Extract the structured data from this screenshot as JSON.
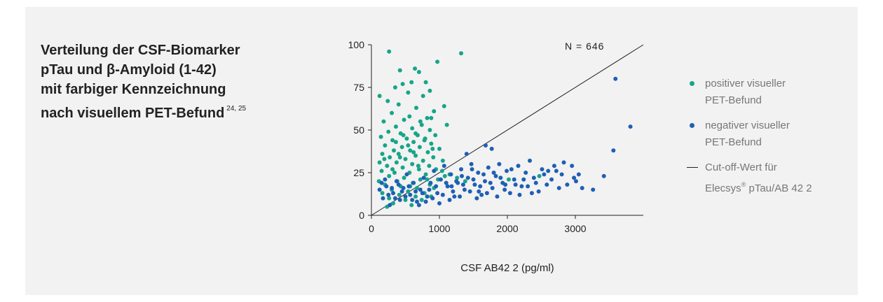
{
  "title": {
    "lines": [
      "Verteilung der CSF-Biomarker",
      "pTau und β-Amyloid (1-42)",
      "mit farbiger Kennzeichnung",
      "nach visuellem PET-Befund"
    ],
    "superscript": "24, 25"
  },
  "colors": {
    "positive": "#17a589",
    "negative": "#1f5fb4",
    "cutoff": "#222222"
  },
  "legend": {
    "positive": [
      "positiver visueller",
      "PET-Befund"
    ],
    "negative": [
      "negativer visueller",
      "PET-Befund"
    ],
    "cutoff_line1": "Cut-off-Wert für",
    "cutoff_line2_pre": "Elecsys",
    "cutoff_line2_sup": "®",
    "cutoff_line2_post": " pTau/AB 42 2"
  },
  "chart_data": {
    "type": "scatter",
    "annotation": "N = 646",
    "xlabel": "CSF AB42 2 (pg/ml)",
    "ylabel": "",
    "xlim": [
      0,
      4000
    ],
    "ylim": [
      0,
      100
    ],
    "xticks": [
      0,
      1000,
      2000,
      3000
    ],
    "yticks": [
      0,
      25,
      50,
      75,
      100
    ],
    "cutoff_line": {
      "x": [
        0,
        4000
      ],
      "y": [
        0,
        100
      ]
    },
    "series": [
      {
        "key": "positive",
        "points": [
          [
            260,
            96
          ],
          [
            1320,
            95
          ],
          [
            970,
            90
          ],
          [
            640,
            86
          ],
          [
            420,
            85
          ],
          [
            700,
            84
          ],
          [
            590,
            78
          ],
          [
            460,
            77
          ],
          [
            800,
            78
          ],
          [
            350,
            75
          ],
          [
            860,
            73
          ],
          [
            120,
            70
          ],
          [
            540,
            72
          ],
          [
            760,
            70
          ],
          [
            240,
            67
          ],
          [
            400,
            65
          ],
          [
            1070,
            64
          ],
          [
            660,
            63
          ],
          [
            920,
            61
          ],
          [
            300,
            60
          ],
          [
            560,
            58
          ],
          [
            820,
            57
          ],
          [
            180,
            55
          ],
          [
            480,
            56
          ],
          [
            720,
            55
          ],
          [
            1110,
            53
          ],
          [
            360,
            52
          ],
          [
            600,
            51
          ],
          [
            860,
            50
          ],
          [
            250,
            49
          ],
          [
            430,
            48
          ],
          [
            680,
            47
          ],
          [
            940,
            47
          ],
          [
            140,
            46
          ],
          [
            520,
            45
          ],
          [
            790,
            45
          ],
          [
            310,
            44
          ],
          [
            620,
            43
          ],
          [
            880,
            42
          ],
          [
            200,
            41
          ],
          [
            450,
            40
          ],
          [
            710,
            40
          ],
          [
            1000,
            39
          ],
          [
            330,
            38
          ],
          [
            570,
            38
          ],
          [
            830,
            37
          ],
          [
            160,
            36
          ],
          [
            400,
            36
          ],
          [
            650,
            35
          ],
          [
            910,
            34
          ],
          [
            270,
            34
          ],
          [
            500,
            33
          ],
          [
            760,
            32
          ],
          [
            1050,
            32
          ],
          [
            120,
            31
          ],
          [
            370,
            31
          ],
          [
            600,
            30
          ],
          [
            850,
            29
          ],
          [
            230,
            29
          ],
          [
            460,
            28
          ],
          [
            700,
            27
          ],
          [
            950,
            27
          ],
          [
            150,
            26
          ],
          [
            340,
            25
          ],
          [
            560,
            25
          ],
          [
            800,
            24
          ],
          [
            1080,
            23
          ],
          [
            260,
            23
          ],
          [
            480,
            22
          ],
          [
            720,
            21
          ],
          [
            980,
            21
          ],
          [
            110,
            20
          ],
          [
            380,
            20
          ],
          [
            610,
            19
          ],
          [
            860,
            18
          ],
          [
            200,
            18
          ],
          [
            430,
            17
          ],
          [
            670,
            16
          ],
          [
            920,
            16
          ],
          [
            300,
            15
          ],
          [
            540,
            14
          ],
          [
            780,
            13
          ],
          [
            160,
            13
          ],
          [
            410,
            12
          ],
          [
            650,
            11
          ],
          [
            880,
            11
          ],
          [
            260,
            10
          ],
          [
            500,
            9
          ],
          [
            740,
            9
          ],
          [
            320,
            7
          ],
          [
            590,
            6
          ],
          [
            230,
            5
          ],
          [
            1040,
            26
          ],
          [
            1150,
            24
          ],
          [
            1260,
            22
          ],
          [
            1380,
            20
          ],
          [
            2020,
            21
          ],
          [
            2470,
            23
          ],
          [
            650,
            48
          ],
          [
            780,
            44
          ],
          [
            900,
            39
          ],
          [
            540,
            41
          ],
          [
            420,
            34
          ],
          [
            690,
            29
          ],
          [
            310,
            27
          ],
          [
            820,
            21
          ],
          [
            570,
            17
          ],
          [
            190,
            33
          ],
          [
            470,
            47
          ],
          [
            740,
            53
          ],
          [
            880,
            57
          ],
          [
            360,
            43
          ],
          [
            620,
            37
          ]
        ]
      },
      {
        "key": "negative",
        "points": [
          [
            3590,
            80
          ],
          [
            3810,
            52
          ],
          [
            3560,
            38
          ],
          [
            1680,
            41
          ],
          [
            1770,
            39
          ],
          [
            1400,
            36
          ],
          [
            3420,
            23
          ],
          [
            3260,
            15
          ],
          [
            3050,
            24
          ],
          [
            2950,
            29
          ],
          [
            3010,
            20
          ],
          [
            2830,
            31
          ],
          [
            2720,
            26
          ],
          [
            2650,
            21
          ],
          [
            2580,
            18
          ],
          [
            2510,
            27
          ],
          [
            2460,
            14
          ],
          [
            2390,
            22
          ],
          [
            2330,
            32
          ],
          [
            2270,
            25
          ],
          [
            2210,
            17
          ],
          [
            2160,
            29
          ],
          [
            2100,
            21
          ],
          [
            2040,
            13
          ],
          [
            1990,
            26
          ],
          [
            1930,
            19
          ],
          [
            1880,
            30
          ],
          [
            1830,
            23
          ],
          [
            1780,
            16
          ],
          [
            1720,
            28
          ],
          [
            1670,
            20
          ],
          [
            1620,
            12
          ],
          [
            1570,
            25
          ],
          [
            1520,
            18
          ],
          [
            1470,
            30
          ],
          [
            1420,
            22
          ],
          [
            1370,
            15
          ],
          [
            1320,
            27
          ],
          [
            1270,
            19
          ],
          [
            1220,
            11
          ],
          [
            1170,
            24
          ],
          [
            1120,
            17
          ],
          [
            1070,
            29
          ],
          [
            1020,
            21
          ],
          [
            970,
            13
          ],
          [
            920,
            26
          ],
          [
            870,
            19
          ],
          [
            820,
            11
          ],
          [
            770,
            22
          ],
          [
            720,
            15
          ],
          [
            670,
            8
          ],
          [
            620,
            19
          ],
          [
            570,
            12
          ],
          [
            520,
            24
          ],
          [
            470,
            16
          ],
          [
            420,
            9
          ],
          [
            370,
            20
          ],
          [
            320,
            13
          ],
          [
            270,
            6
          ],
          [
            220,
            17
          ],
          [
            170,
            10
          ],
          [
            120,
            15
          ],
          [
            2880,
            18
          ],
          [
            2760,
            16
          ],
          [
            2690,
            29
          ],
          [
            2540,
            24
          ],
          [
            2420,
            19
          ],
          [
            2360,
            13
          ],
          [
            2240,
            21
          ],
          [
            2180,
            12
          ],
          [
            2120,
            18
          ],
          [
            2060,
            27
          ],
          [
            1960,
            15
          ],
          [
            1900,
            22
          ],
          [
            1850,
            11
          ],
          [
            1750,
            19
          ],
          [
            1700,
            13
          ],
          [
            1650,
            24
          ],
          [
            1600,
            17
          ],
          [
            1550,
            10
          ],
          [
            1500,
            21
          ],
          [
            1450,
            14
          ],
          [
            1350,
            18
          ],
          [
            1300,
            11
          ],
          [
            1250,
            20
          ],
          [
            1200,
            14
          ],
          [
            1150,
            9
          ],
          [
            1100,
            19
          ],
          [
            1050,
            12
          ],
          [
            1000,
            7
          ],
          [
            950,
            17
          ],
          [
            900,
            10
          ],
          [
            850,
            15
          ],
          [
            800,
            8
          ],
          [
            750,
            13
          ],
          [
            700,
            6
          ],
          [
            650,
            14
          ],
          [
            600,
            9
          ],
          [
            550,
            17
          ],
          [
            500,
            11
          ],
          [
            450,
            14
          ],
          [
            400,
            18
          ],
          [
            350,
            10
          ],
          [
            300,
            16
          ],
          [
            250,
            12
          ],
          [
            200,
            21
          ],
          [
            150,
            19
          ],
          [
            3100,
            16
          ],
          [
            2980,
            22
          ],
          [
            2800,
            24
          ],
          [
            2600,
            26
          ],
          [
            2300,
            17
          ],
          [
            1970,
            18
          ],
          [
            1800,
            25
          ],
          [
            1580,
            14
          ],
          [
            1480,
            27
          ],
          [
            1330,
            23
          ],
          [
            1180,
            17
          ]
        ]
      }
    ]
  }
}
